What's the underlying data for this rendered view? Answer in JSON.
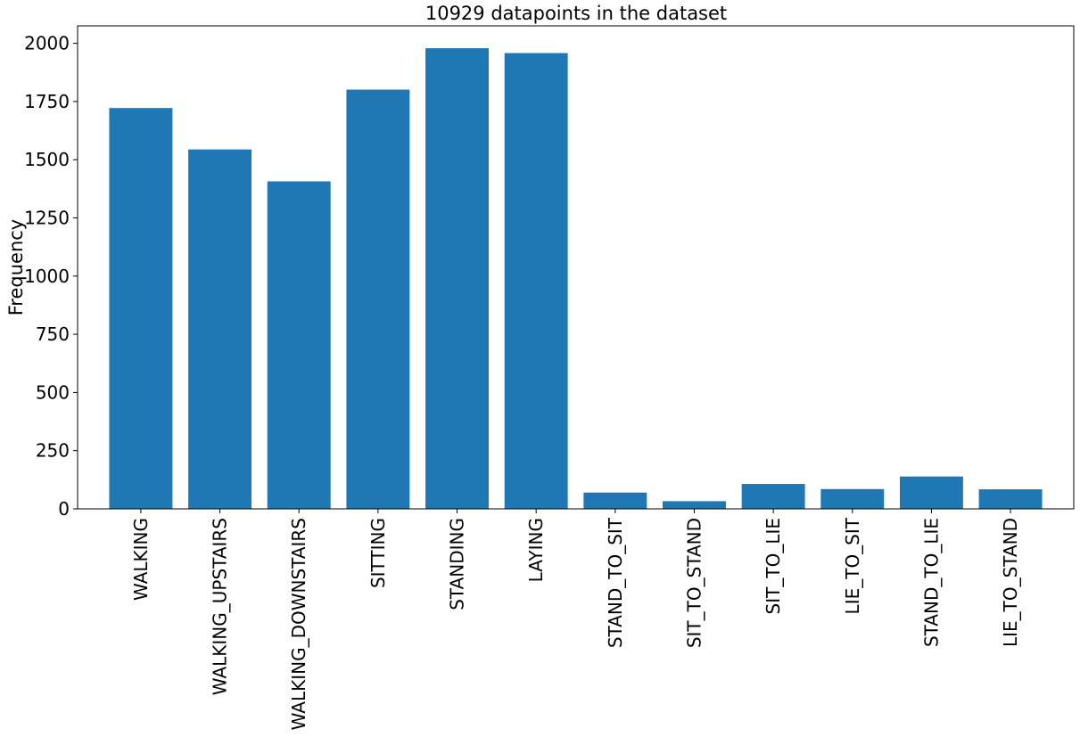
{
  "chart_data": {
    "type": "bar",
    "title": "10929 datapoints in the dataset",
    "xlabel": "",
    "ylabel": "Frequency",
    "ylim": [
      0,
      2075
    ],
    "yticks": [
      0,
      250,
      500,
      750,
      1000,
      1250,
      1500,
      1750,
      2000
    ],
    "categories": [
      "WALKING",
      "WALKING_UPSTAIRS",
      "WALKING_DOWNSTAIRS",
      "SITTING",
      "STANDING",
      "LAYING",
      "STAND_TO_SIT",
      "SIT_TO_STAND",
      "SIT_TO_LIE",
      "LIE_TO_SIT",
      "STAND_TO_LIE",
      "LIE_TO_STAND"
    ],
    "values": [
      1722,
      1544,
      1407,
      1801,
      1979,
      1958,
      70,
      33,
      107,
      85,
      139,
      84
    ],
    "bar_color": "#1f77b4",
    "grid": false,
    "legend": "none"
  }
}
